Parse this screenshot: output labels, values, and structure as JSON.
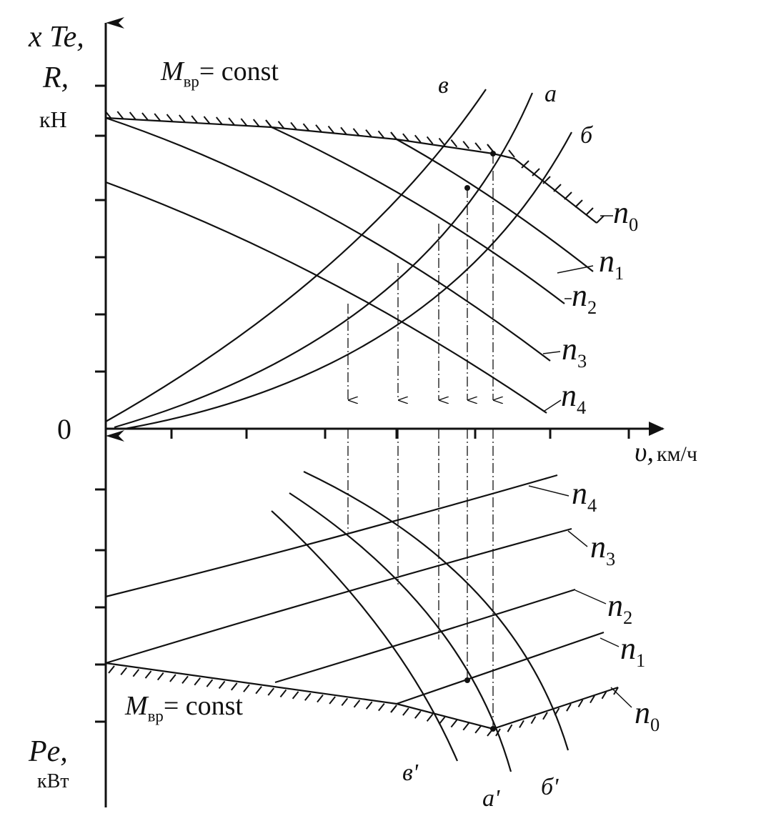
{
  "axes": {
    "y_top_1": "x Te,",
    "y_top_2": "R,",
    "y_top_unit": "кН",
    "origin": "0",
    "x_symbol": "υ,",
    "x_unit": "км/ч",
    "y_bottom": "Pe,",
    "y_bottom_unit": "кВт"
  },
  "upper": {
    "constraint": {
      "main": "M",
      "sub": "вр",
      "rest": "= const"
    },
    "curves": [
      "в",
      "а",
      "б"
    ],
    "speeds": [
      {
        "main": "n",
        "sub": "0"
      },
      {
        "main": "n",
        "sub": "1"
      },
      {
        "main": "n",
        "sub": "2"
      },
      {
        "main": "n",
        "sub": "3"
      },
      {
        "main": "n",
        "sub": "4"
      }
    ]
  },
  "lower": {
    "constraint": {
      "main": "M",
      "sub": "вр",
      "rest": "= const"
    },
    "curves": [
      "в'",
      "а'",
      "б'"
    ],
    "speeds": [
      {
        "main": "n",
        "sub": "0"
      },
      {
        "main": "n",
        "sub": "1"
      },
      {
        "main": "n",
        "sub": "2"
      },
      {
        "main": "n",
        "sub": "3"
      },
      {
        "main": "n",
        "sub": "4"
      }
    ]
  }
}
